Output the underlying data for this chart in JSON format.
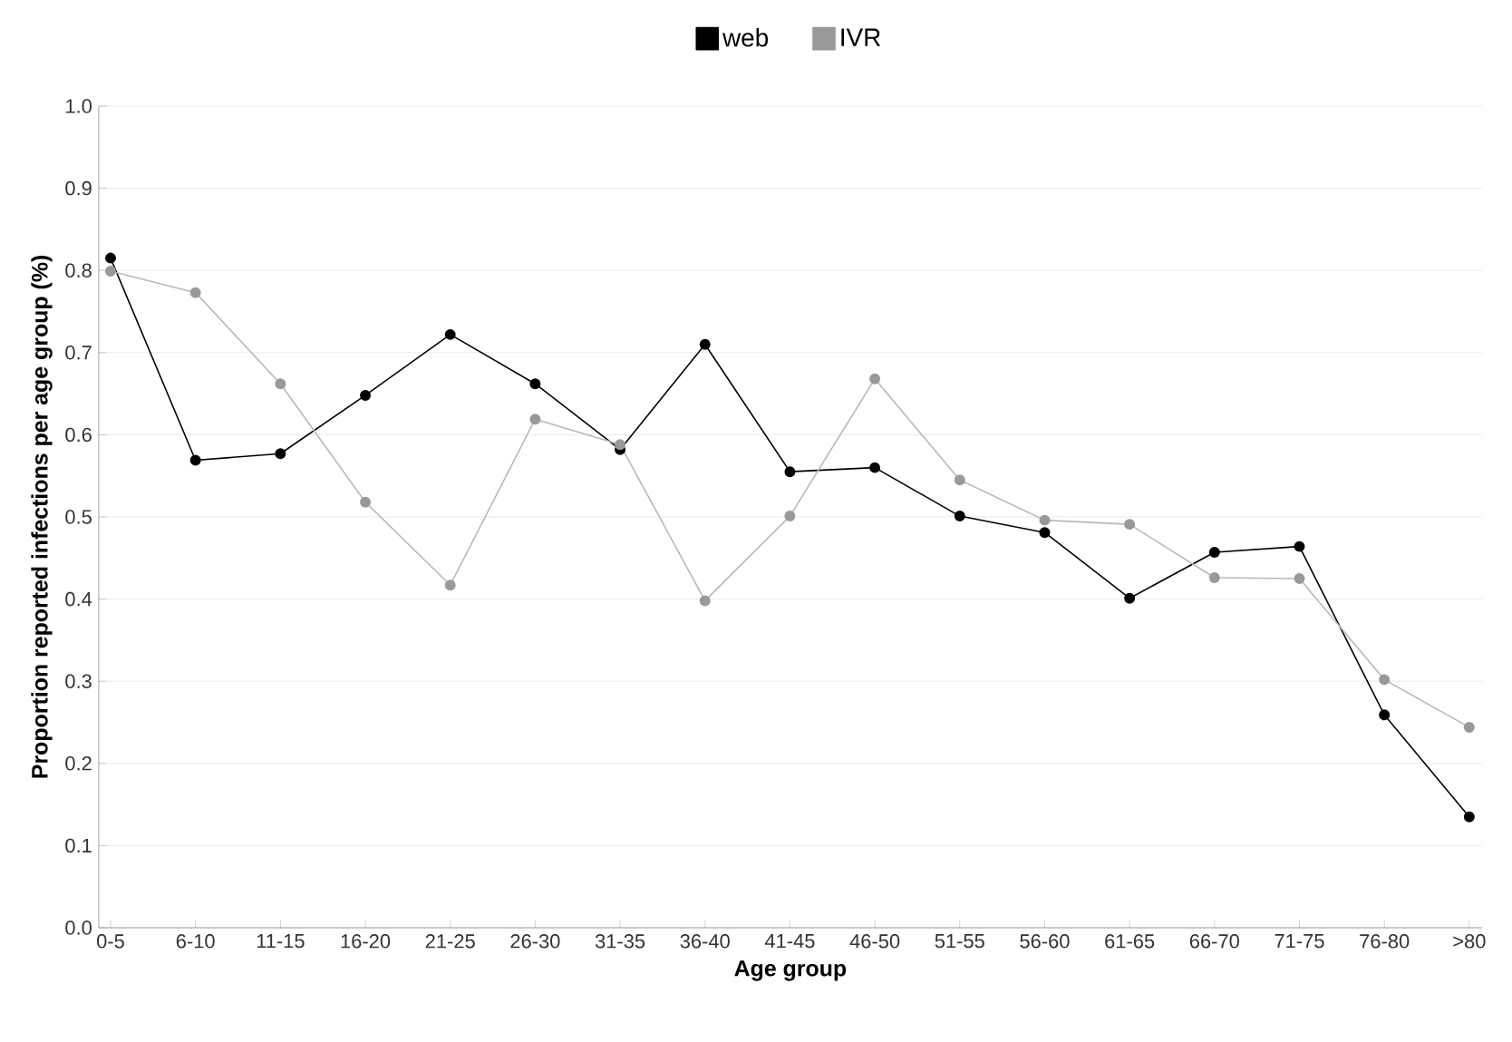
{
  "chart_data": {
    "type": "line",
    "xlabel": "Age group",
    "ylabel": "Proportion reported infections per age group (%)",
    "categories": [
      "0-5",
      "6-10",
      "11-15",
      "16-20",
      "21-25",
      "26-30",
      "31-35",
      "36-40",
      "41-45",
      "46-50",
      "51-55",
      "56-60",
      "61-65",
      "66-70",
      "71-75",
      "76-80",
      ">80"
    ],
    "series": [
      {
        "name": "web",
        "color": "#000000",
        "values": [
          0.815,
          0.569,
          0.577,
          0.648,
          0.722,
          0.662,
          0.582,
          0.71,
          0.555,
          0.56,
          0.501,
          0.481,
          0.401,
          0.457,
          0.464,
          0.259,
          0.135
        ]
      },
      {
        "name": "IVR",
        "color": "#999999",
        "values": [
          0.799,
          0.773,
          0.662,
          0.518,
          0.417,
          0.619,
          0.588,
          0.398,
          0.501,
          0.668,
          0.545,
          0.496,
          0.491,
          0.426,
          0.425,
          0.302,
          0.244
        ]
      }
    ],
    "ylim": [
      0,
      1
    ],
    "yticks": [
      {
        "value": 0,
        "label": "0.0"
      },
      {
        "value": 0.1,
        "label": "0.1"
      },
      {
        "value": 0.2,
        "label": "0.2"
      },
      {
        "value": 0.3,
        "label": "0.3"
      },
      {
        "value": 0.4,
        "label": "0.4"
      },
      {
        "value": 0.5,
        "label": "0.5"
      },
      {
        "value": 0.6,
        "label": "0.6"
      },
      {
        "value": 0.7,
        "label": "0.7"
      },
      {
        "value": 0.8,
        "label": "0.8"
      },
      {
        "value": 0.9,
        "label": "0.9"
      },
      {
        "value": 1,
        "label": "1.0"
      }
    ],
    "grid": "y",
    "legend": "top",
    "marker": "circle",
    "line_style": "solid"
  }
}
